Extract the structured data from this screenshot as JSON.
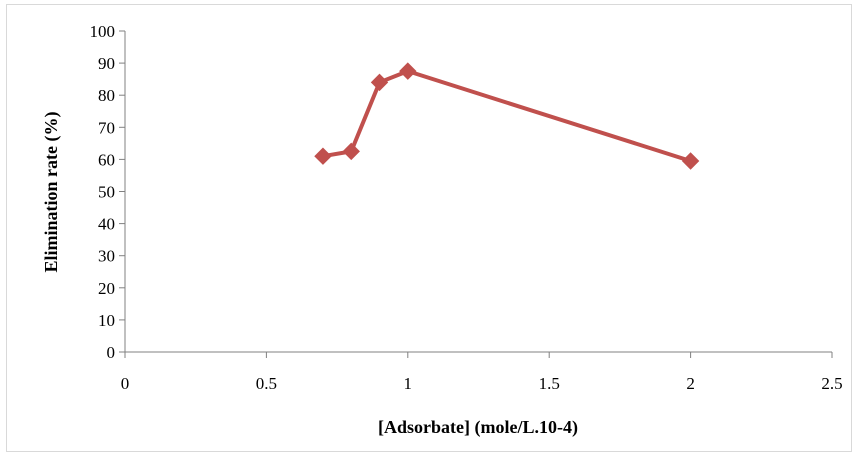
{
  "chart_data": {
    "type": "line",
    "xlabel": "[Adsorbate] (mole/L.10-4)",
    "ylabel": "Elimination rate (%)",
    "xlim": [
      0,
      2.5
    ],
    "ylim": [
      0,
      100
    ],
    "x_ticks": [
      "0",
      "0.5",
      "1",
      "1.5",
      "2",
      "2.5"
    ],
    "y_ticks": [
      "0",
      "10",
      "20",
      "30",
      "40",
      "50",
      "60",
      "70",
      "80",
      "90",
      "100"
    ],
    "grid": false,
    "legend": "none",
    "series": [
      {
        "color": "#c0504d",
        "marker": "diamond",
        "points": [
          {
            "x": 0.7,
            "y": 61
          },
          {
            "x": 0.8,
            "y": 62.5
          },
          {
            "x": 0.9,
            "y": 84
          },
          {
            "x": 1.0,
            "y": 87.5
          },
          {
            "x": 2.0,
            "y": 59.5
          }
        ]
      }
    ]
  }
}
